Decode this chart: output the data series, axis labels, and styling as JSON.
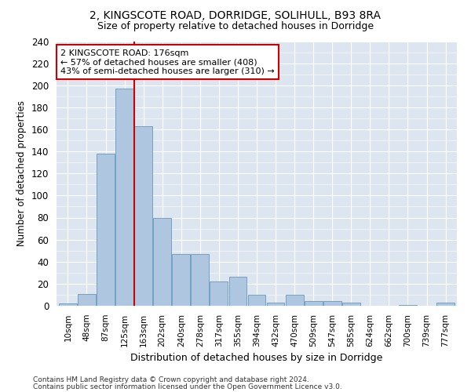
{
  "title_line1": "2, KINGSCOTE ROAD, DORRIDGE, SOLIHULL, B93 8RA",
  "title_line2": "Size of property relative to detached houses in Dorridge",
  "xlabel": "Distribution of detached houses by size in Dorridge",
  "ylabel": "Number of detached properties",
  "bar_labels": [
    "10sqm",
    "48sqm",
    "87sqm",
    "125sqm",
    "163sqm",
    "202sqm",
    "240sqm",
    "278sqm",
    "317sqm",
    "355sqm",
    "394sqm",
    "432sqm",
    "470sqm",
    "509sqm",
    "547sqm",
    "585sqm",
    "624sqm",
    "662sqm",
    "700sqm",
    "739sqm",
    "777sqm"
  ],
  "bar_values": [
    2,
    11,
    138,
    197,
    163,
    80,
    47,
    47,
    22,
    26,
    10,
    3,
    10,
    4,
    4,
    3,
    0,
    0,
    1,
    0,
    3
  ],
  "bar_color": "#aec6df",
  "bar_edge_color": "#6699bb",
  "vline_color": "#cc0000",
  "vline_x": 3.5,
  "annotation_line1": "2 KINGSCOTE ROAD: 176sqm",
  "annotation_line2": "← 57% of detached houses are smaller (408)",
  "annotation_line3": "43% of semi-detached houses are larger (310) →",
  "annotation_box_color": "#ffffff",
  "annotation_box_edge": "#cc0000",
  "ylim": [
    0,
    240
  ],
  "yticks": [
    0,
    20,
    40,
    60,
    80,
    100,
    120,
    140,
    160,
    180,
    200,
    220,
    240
  ],
  "background_color": "#dde6f0",
  "footer_line1": "Contains HM Land Registry data © Crown copyright and database right 2024.",
  "footer_line2": "Contains public sector information licensed under the Open Government Licence v3.0."
}
